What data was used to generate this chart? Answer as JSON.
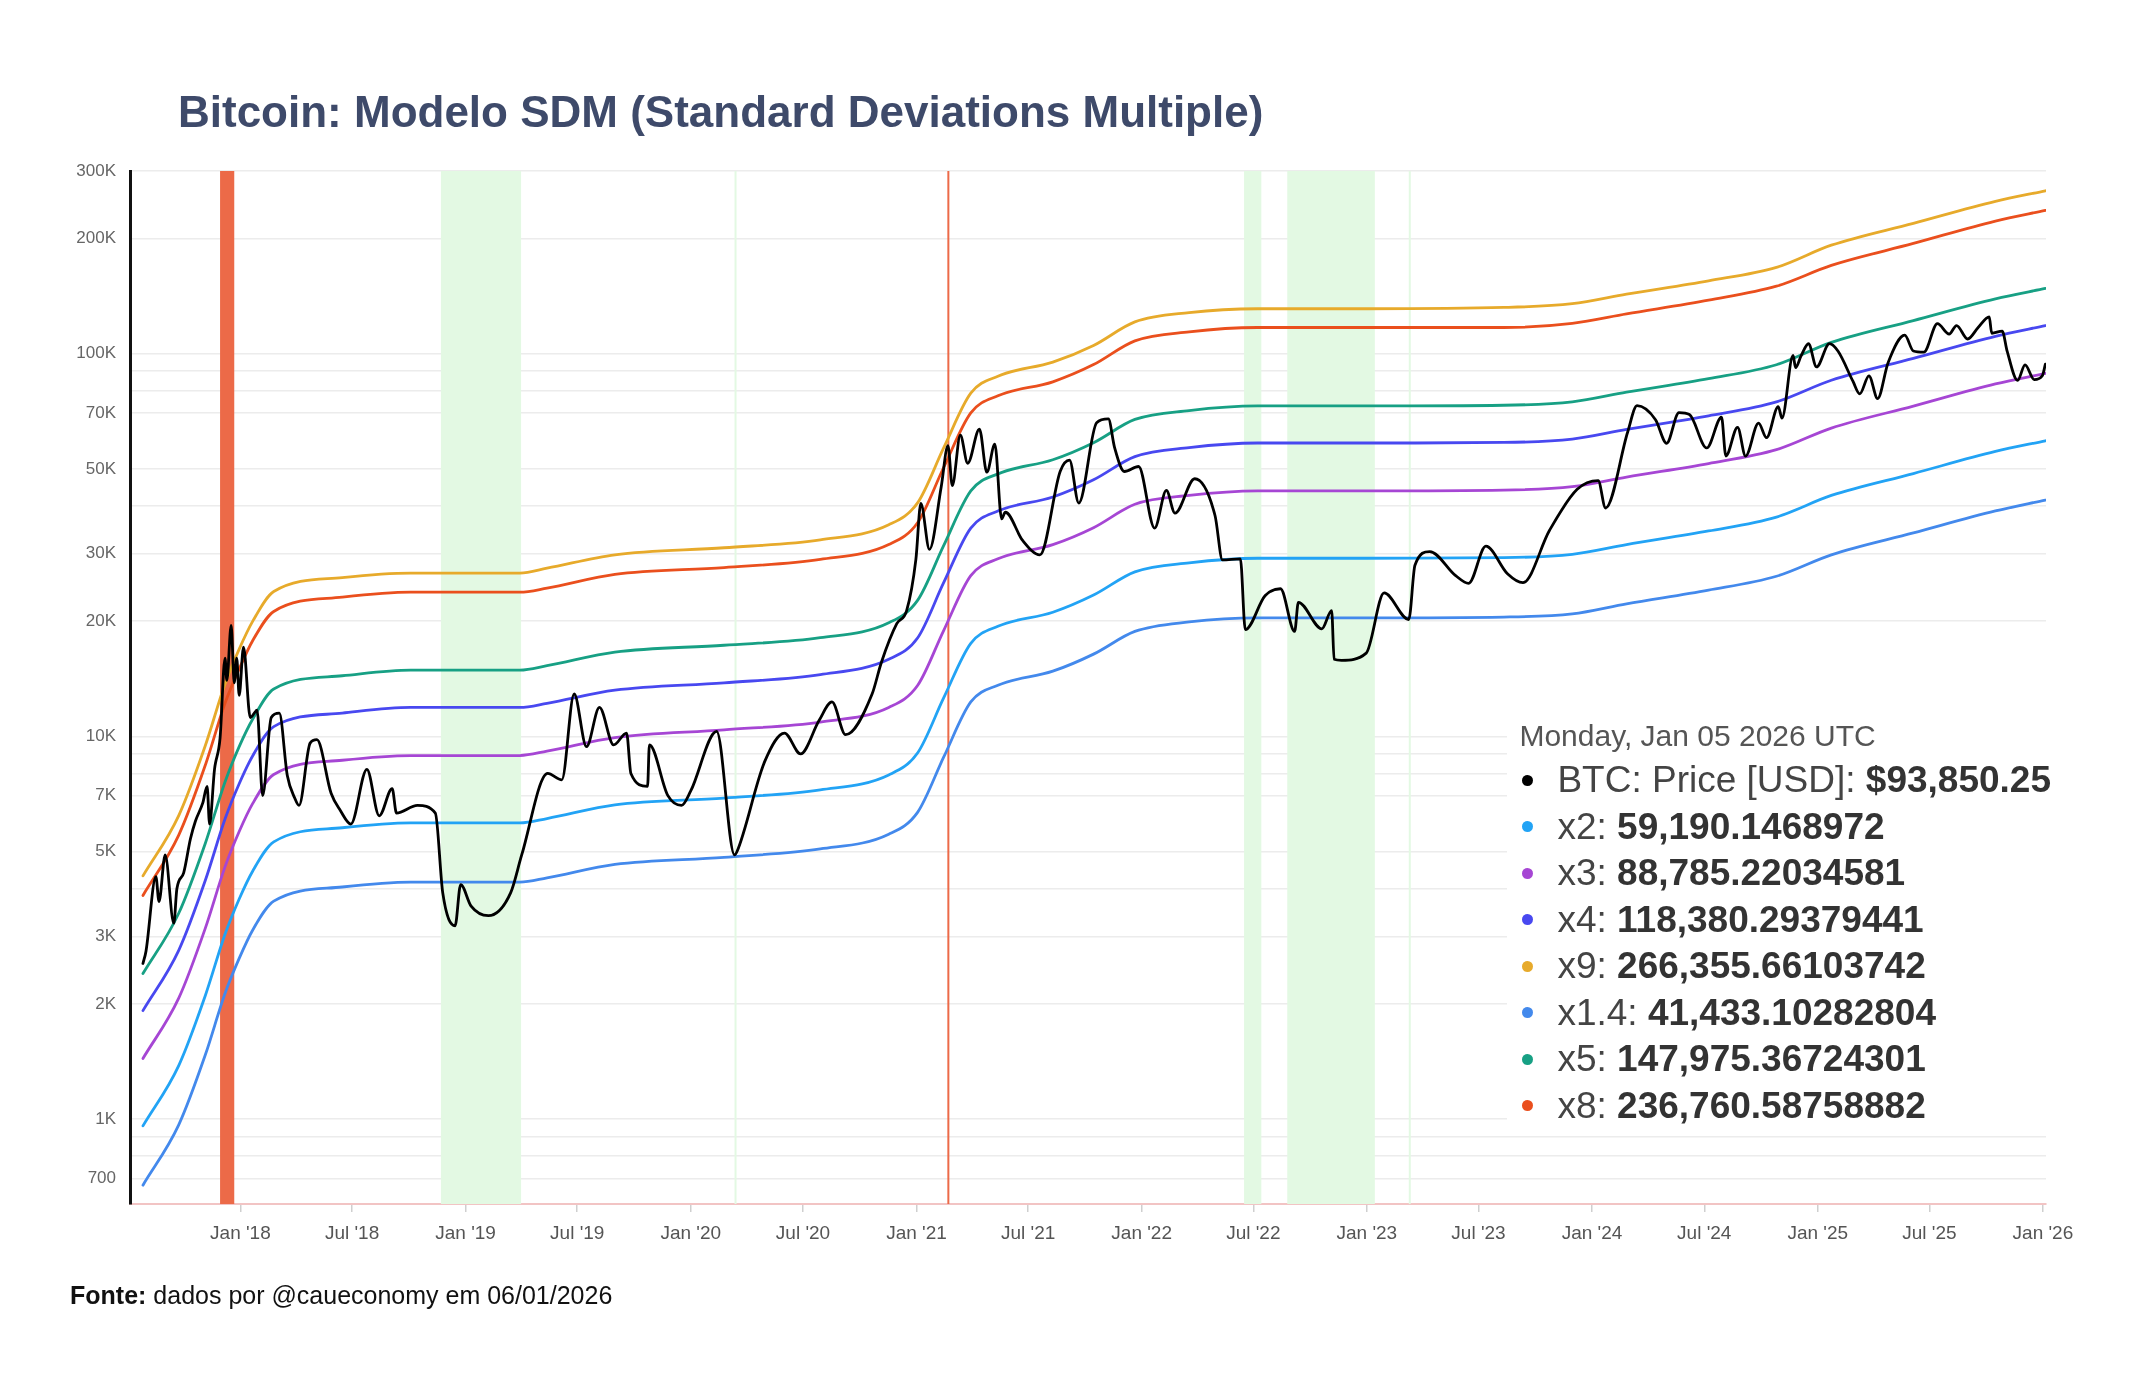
{
  "chart_data": {
    "type": "line",
    "title": "Bitcoin: Modelo SDM (Standard Deviations Multiple)",
    "legend_title": "Monday, Jan 05 2026 UTC",
    "x": [
      "2017-07-27",
      "2017-09-23",
      "2017-11-05",
      "2017-12-07",
      "2017-12-30",
      "2018-01-21",
      "2018-02-24",
      "2018-06-15",
      "2018-10-04",
      "2019-03-30",
      "2019-05-13",
      "2019-08-31",
      "2020-02-24",
      "2020-07-29",
      "2020-11-17",
      "2021-01-03",
      "2021-02-14",
      "2021-03-30",
      "2021-05-13",
      "2021-08-10",
      "2021-10-15",
      "2021-12-21",
      "2022-03-19",
      "2022-07-08",
      "2023-01-01",
      "2023-08-11",
      "2023-11-30",
      "2024-02-26",
      "2024-07-08",
      "2024-10-26",
      "2025-01-23",
      "2025-06-05",
      "2025-10-16",
      "2026-01-05"
    ],
    "series": [
      {
        "name": "BTC: Price [USD]: $93,850.25",
        "color": "#000000",
        "x": [
          "2017-07-27",
          "2017-08-01",
          "2017-08-17",
          "2017-08-22",
          "2017-09-01",
          "2017-09-15",
          "2017-09-20",
          "2017-10-01",
          "2017-10-12",
          "2017-10-20",
          "2017-11-01",
          "2017-11-08",
          "2017-11-12",
          "2017-11-20",
          "2017-11-29",
          "2017-12-07",
          "2017-12-10",
          "2017-12-17",
          "2017-12-22",
          "2017-12-26",
          "2017-12-30",
          "2018-01-06",
          "2018-01-17",
          "2018-01-28",
          "2018-02-06",
          "2018-02-20",
          "2018-03-05",
          "2018-03-18",
          "2018-03-30",
          "2018-04-06",
          "2018-04-24",
          "2018-05-05",
          "2018-05-28",
          "2018-06-12",
          "2018-06-29",
          "2018-07-25",
          "2018-08-14",
          "2018-09-04",
          "2018-09-11",
          "2018-10-15",
          "2018-11-13",
          "2018-11-25",
          "2018-12-15",
          "2018-12-24",
          "2019-01-10",
          "2019-02-07",
          "2019-03-15",
          "2019-04-02",
          "2019-05-14",
          "2019-06-06",
          "2019-06-26",
          "2019-07-16",
          "2019-08-06",
          "2019-08-29",
          "2019-09-19",
          "2019-09-26",
          "2019-10-23",
          "2019-10-26",
          "2019-11-25",
          "2019-12-17",
          "2020-01-01",
          "2020-02-12",
          "2020-03-12",
          "2020-03-16",
          "2020-04-30",
          "2020-06-01",
          "2020-06-27",
          "2020-07-27",
          "2020-08-17",
          "2020-09-08",
          "2020-10-21",
          "2020-11-05",
          "2020-11-30",
          "2020-12-16",
          "2020-12-31",
          "2021-01-08",
          "2021-01-22",
          "2021-02-10",
          "2021-02-21",
          "2021-02-28",
          "2021-03-13",
          "2021-03-25",
          "2021-04-13",
          "2021-04-25",
          "2021-05-08",
          "2021-05-19",
          "2021-05-25",
          "2021-06-22",
          "2021-07-20",
          "2021-08-22",
          "2021-09-06",
          "2021-09-21",
          "2021-10-20",
          "2021-11-08",
          "2021-11-18",
          "2021-12-04",
          "2021-12-27",
          "2022-01-22",
          "2022-02-10",
          "2022-02-24",
          "2022-03-28",
          "2022-04-30",
          "2022-05-12",
          "2022-06-10",
          "2022-06-18",
          "2022-07-20",
          "2022-08-14",
          "2022-09-06",
          "2022-09-12",
          "2022-10-20",
          "2022-11-05",
          "2022-11-09",
          "2022-11-21",
          "2022-12-31",
          "2023-01-29",
          "2023-03-10",
          "2023-03-20",
          "2023-04-13",
          "2023-05-25",
          "2023-06-15",
          "2023-07-13",
          "2023-08-17",
          "2023-09-11",
          "2023-10-24",
          "2023-12-08",
          "2024-01-11",
          "2024-01-23",
          "2024-02-28",
          "2024-03-14",
          "2024-04-13",
          "2024-05-01",
          "2024-05-21",
          "2024-06-07",
          "2024-07-05",
          "2024-07-29",
          "2024-08-05",
          "2024-08-24",
          "2024-09-06",
          "2024-09-27",
          "2024-10-10",
          "2024-10-29",
          "2024-11-04",
          "2024-11-22",
          "2024-11-26",
          "2024-12-05",
          "2024-12-17",
          "2024-12-30",
          "2025-01-20",
          "2025-02-03",
          "2025-02-27",
          "2025-03-10",
          "2025-03-25",
          "2025-04-08",
          "2025-04-25",
          "2025-05-22",
          "2025-06-05",
          "2025-06-22",
          "2025-07-14",
          "2025-08-02",
          "2025-08-14",
          "2025-09-01",
          "2025-09-18",
          "2025-10-06",
          "2025-10-10",
          "2025-10-27",
          "2025-11-04",
          "2025-11-21",
          "2025-12-03",
          "2025-12-18",
          "2025-12-31",
          "2026-01-05"
        ],
        "values": [
          2550,
          2750,
          4300,
          3700,
          4900,
          3250,
          4000,
          4400,
          5400,
          6000,
          6700,
          7400,
          5900,
          8200,
          9900,
          16000,
          14000,
          19500,
          13800,
          16000,
          12800,
          17100,
          11200,
          11700,
          7000,
          11200,
          11500,
          7900,
          6900,
          6600,
          9600,
          9800,
          7100,
          6400,
          5900,
          8200,
          6200,
          7300,
          6300,
          6600,
          6300,
          3900,
          3200,
          4100,
          3600,
          3400,
          3900,
          4900,
          8000,
          7700,
          12900,
          9400,
          11900,
          9500,
          10200,
          8000,
          7400,
          9500,
          7000,
          6600,
          7200,
          10300,
          4900,
          5000,
          8600,
          10200,
          9000,
          11000,
          12300,
          10100,
          12900,
          15600,
          19700,
          21300,
          29000,
          40600,
          30800,
          44800,
          57500,
          45200,
          61200,
          51700,
          63500,
          49000,
          58000,
          37000,
          38500,
          32500,
          29800,
          49300,
          52700,
          40700,
          66000,
          67500,
          56900,
          49200,
          50700,
          35000,
          43900,
          38300,
          47100,
          37700,
          28900,
          29100,
          19000,
          23300,
          24300,
          18800,
          22400,
          19100,
          21300,
          15900,
          15800,
          16500,
          23700,
          20200,
          28000,
          30400,
          26300,
          25100,
          31400,
          26600,
          25200,
          34500,
          44200,
          46600,
          39500,
          62500,
          73100,
          67200,
          58300,
          70100,
          69300,
          56700,
          68200,
          54000,
          64200,
          54000,
          65800,
          60300,
          72700,
          67800,
          98900,
          91900,
          98700,
          106100,
          92300,
          106200,
          101400,
          84700,
          78500,
          87500,
          76300,
          94700,
          111700,
          101600,
          100900,
          119800,
          112500,
          118400,
          109200,
          117000,
          124700,
          113000,
          114500,
          101500,
          85100,
          93400,
          85500,
          87500,
          93850.25
        ]
      },
      {
        "name": "x2: 59,190.1468972",
        "color": "#22a3f5",
        "values": [
          960,
          1380,
          2100,
          3040,
          3760,
          4450,
          5300,
          5770,
          5940,
          5940,
          6100,
          6620,
          6900,
          7250,
          7930,
          9060,
          12600,
          17500,
          19400,
          21100,
          23400,
          26900,
          28400,
          29200,
          29200,
          29300,
          29900,
          31700,
          34400,
          37400,
          42600,
          48600,
          55500,
          59190.1468972
        ]
      },
      {
        "name": "x3: 88,785.22034581",
        "color": "#a646d4",
        "values": [
          1440,
          2070,
          3150,
          4560,
          5640,
          6680,
          7950,
          8660,
          8910,
          8910,
          9150,
          9930,
          10400,
          10900,
          11900,
          13600,
          18900,
          26300,
          29100,
          31700,
          35100,
          40400,
          42600,
          43800,
          43800,
          44000,
          44900,
          47600,
          51600,
          56100,
          63900,
          72900,
          83300,
          88785.22034581
        ]
      },
      {
        "name": "x4: 118,380.29379441",
        "color": "#4848f0",
        "values": [
          1920,
          2760,
          4200,
          6080,
          7520,
          8900,
          10600,
          11500,
          11900,
          11900,
          12200,
          13200,
          13800,
          14500,
          15900,
          18100,
          25200,
          35000,
          38800,
          42200,
          46800,
          53800,
          56800,
          58400,
          58400,
          58600,
          59800,
          63400,
          68800,
          74800,
          85200,
          97200,
          111000,
          118380.29379441
        ]
      },
      {
        "name": "x9: 266,355.66103742",
        "color": "#e7aa2b",
        "values": [
          4320,
          6210,
          9450,
          13700,
          16900,
          20000,
          23900,
          26000,
          26700,
          26700,
          27500,
          29800,
          31100,
          32600,
          35700,
          40800,
          56700,
          78800,
          87300,
          95000,
          105000,
          121000,
          128000,
          131000,
          131000,
          132000,
          135000,
          143000,
          155000,
          168000,
          192000,
          219000,
          250000,
          266355.66103742
        ]
      },
      {
        "name": "x1.4: 41,433.10282804",
        "color": "#4389ec",
        "values": [
          672,
          966,
          1470,
          2130,
          2630,
          3120,
          3710,
          4040,
          4160,
          4160,
          4270,
          4630,
          4830,
          5080,
          5550,
          6340,
          8820,
          12300,
          13600,
          14800,
          16400,
          18800,
          19900,
          20400,
          20400,
          20500,
          20900,
          22200,
          24100,
          26200,
          29800,
          34000,
          38800,
          41433.10282804
        ]
      },
      {
        "name": "x5: 147,975.36724301",
        "color": "#17a084",
        "values": [
          2400,
          3450,
          5250,
          7600,
          9400,
          11100,
          13300,
          14400,
          14900,
          14900,
          15300,
          16600,
          17300,
          18100,
          19800,
          22700,
          31500,
          43800,
          48500,
          52800,
          58500,
          67300,
          71000,
          73000,
          73000,
          73300,
          74800,
          79300,
          86000,
          93500,
          107000,
          122000,
          139000,
          147975.36724301
        ]
      },
      {
        "name": "x8: 236,760.58758882",
        "color": "#ea4f1d",
        "values": [
          3840,
          5520,
          8400,
          12200,
          15000,
          17800,
          21200,
          23100,
          23800,
          23800,
          24400,
          26500,
          27600,
          29000,
          31700,
          36200,
          50400,
          70000,
          77600,
          84400,
          93600,
          108000,
          114000,
          117000,
          117000,
          117000,
          120000,
          127000,
          138000,
          150000,
          170000,
          194000,
          222000,
          236760.58758882
        ]
      }
    ],
    "xlim": [
      "2017-07-06",
      "2026-01-06"
    ],
    "xticks": [
      {
        "value": "2018-01-01",
        "label": "Jan '18"
      },
      {
        "value": "2018-07-01",
        "label": "Jul '18"
      },
      {
        "value": "2019-01-01",
        "label": "Jan '19"
      },
      {
        "value": "2019-07-01",
        "label": "Jul '19"
      },
      {
        "value": "2020-01-01",
        "label": "Jan '20"
      },
      {
        "value": "2020-07-01",
        "label": "Jul '20"
      },
      {
        "value": "2021-01-01",
        "label": "Jan '21"
      },
      {
        "value": "2021-07-01",
        "label": "Jul '21"
      },
      {
        "value": "2022-01-01",
        "label": "Jan '22"
      },
      {
        "value": "2022-07-01",
        "label": "Jul '22"
      },
      {
        "value": "2023-01-01",
        "label": "Jan '23"
      },
      {
        "value": "2023-07-01",
        "label": "Jul '23"
      },
      {
        "value": "2024-01-01",
        "label": "Jan '24"
      },
      {
        "value": "2024-07-01",
        "label": "Jul '24"
      },
      {
        "value": "2025-01-01",
        "label": "Jan '25"
      },
      {
        "value": "2025-07-01",
        "label": "Jul '25"
      },
      {
        "value": "2026-01-01",
        "label": "Jan '26"
      }
    ],
    "ylim": [
      600,
      300000
    ],
    "yticks": [
      700,
      {
        "value": 800,
        "label": null
      },
      {
        "value": 900,
        "label": null
      },
      {
        "value": 1000,
        "label": "1K"
      },
      {
        "value": 2000,
        "label": "2K"
      },
      {
        "value": 3000,
        "label": "3K"
      },
      {
        "value": 4000,
        "label": null
      },
      {
        "value": 5000,
        "label": "5K"
      },
      {
        "value": 7000,
        "label": "7K"
      },
      {
        "value": 8000,
        "label": null
      },
      {
        "value": 9000,
        "label": null
      },
      {
        "value": 10000,
        "label": "10K"
      },
      {
        "value": 20000,
        "label": "20K"
      },
      {
        "value": 30000,
        "label": "30K"
      },
      {
        "value": 40000,
        "label": null
      },
      {
        "value": 50000,
        "label": "50K"
      },
      {
        "value": 70000,
        "label": "70K"
      },
      {
        "value": 80000,
        "label": null
      },
      {
        "value": 90000,
        "label": null
      },
      {
        "value": 100000,
        "label": "100K"
      },
      {
        "value": 200000,
        "label": "200K"
      },
      {
        "value": 300000,
        "label": "300K"
      }
    ],
    "log": true,
    "grid": "y",
    "legend": "bottom right",
    "marker": "none",
    "line_style": "solid",
    "bands": [
      {
        "axis": "x",
        "from": "2017-11-29",
        "to": "2017-12-22",
        "color": "#ec6a48"
      },
      {
        "axis": "x",
        "from": "2018-11-22",
        "to": "2019-04-01",
        "color": "#e3f9e3"
      },
      {
        "axis": "x",
        "from": "2020-03-12",
        "to": "2020-03-13",
        "color": "#e3f9e3"
      },
      {
        "axis": "x",
        "from": "2021-02-20",
        "to": "2021-02-22",
        "color": "#ec6a48"
      },
      {
        "axis": "x",
        "from": "2022-06-16",
        "to": "2022-07-14",
        "color": "#e3f9e3"
      },
      {
        "axis": "x",
        "from": "2022-08-25",
        "to": "2023-01-14",
        "color": "#e3f9e3"
      },
      {
        "axis": "x",
        "from": "2023-03-10",
        "to": "2023-03-11",
        "color": "#e3f9e3"
      }
    ],
    "annotations": [
      "Fonte: dados por @caueconomy em 06/01/2026"
    ]
  }
}
